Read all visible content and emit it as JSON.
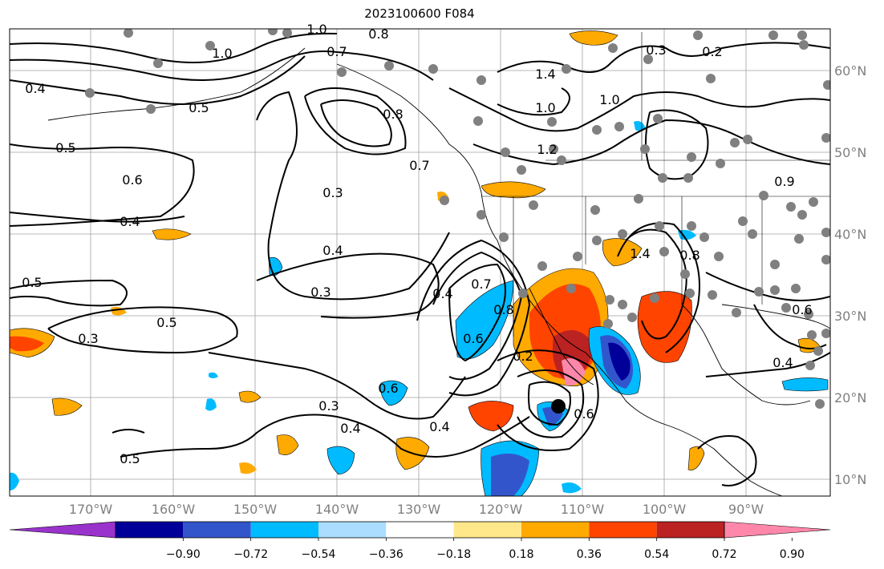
{
  "title": "2023100600 F084",
  "lon_labels": [
    "170°W",
    "160°W",
    "150°W",
    "140°W",
    "130°W",
    "120°W",
    "110°W",
    "100°W",
    "90°W"
  ],
  "lat_labels": [
    "60°N",
    "50°N",
    "40°N",
    "30°N",
    "20°N",
    "10°N"
  ],
  "colorbar": {
    "colors": [
      "#9933cc",
      "#000099",
      "#3355cc",
      "#00bbff",
      "#aaddff",
      "#ffffff",
      "#ffe88a",
      "#ffaa00",
      "#ff4400",
      "#bb2222",
      "#ff88aa"
    ],
    "tick_labels": [
      "−0.90",
      "−0.72",
      "−0.54",
      "−0.36",
      "−0.18",
      "0.18",
      "0.36",
      "0.54",
      "0.72",
      "0.90"
    ]
  },
  "contour_labels": [
    "1.0",
    "0.8",
    "0.7",
    "1.0",
    "0.4",
    "0.5",
    "0.5",
    "0.6",
    "0.4",
    "0.3",
    "0.4",
    "0.5",
    "0.3",
    "0.5",
    "0.3",
    "0.8",
    "0.7",
    "0.6",
    "0.4",
    "0.7",
    "0.8",
    "0.6",
    "0.2",
    "0.4",
    "0.4",
    "0.5",
    "0.3",
    "0.2",
    "1.4",
    "1.0",
    "1.0",
    "1.2",
    "1.4",
    "0.8",
    "0.9",
    "0.6",
    "0.4",
    "0.3",
    "0.6"
  ],
  "colors": {
    "land_station": "#808080",
    "storm_center": "#000000"
  }
}
